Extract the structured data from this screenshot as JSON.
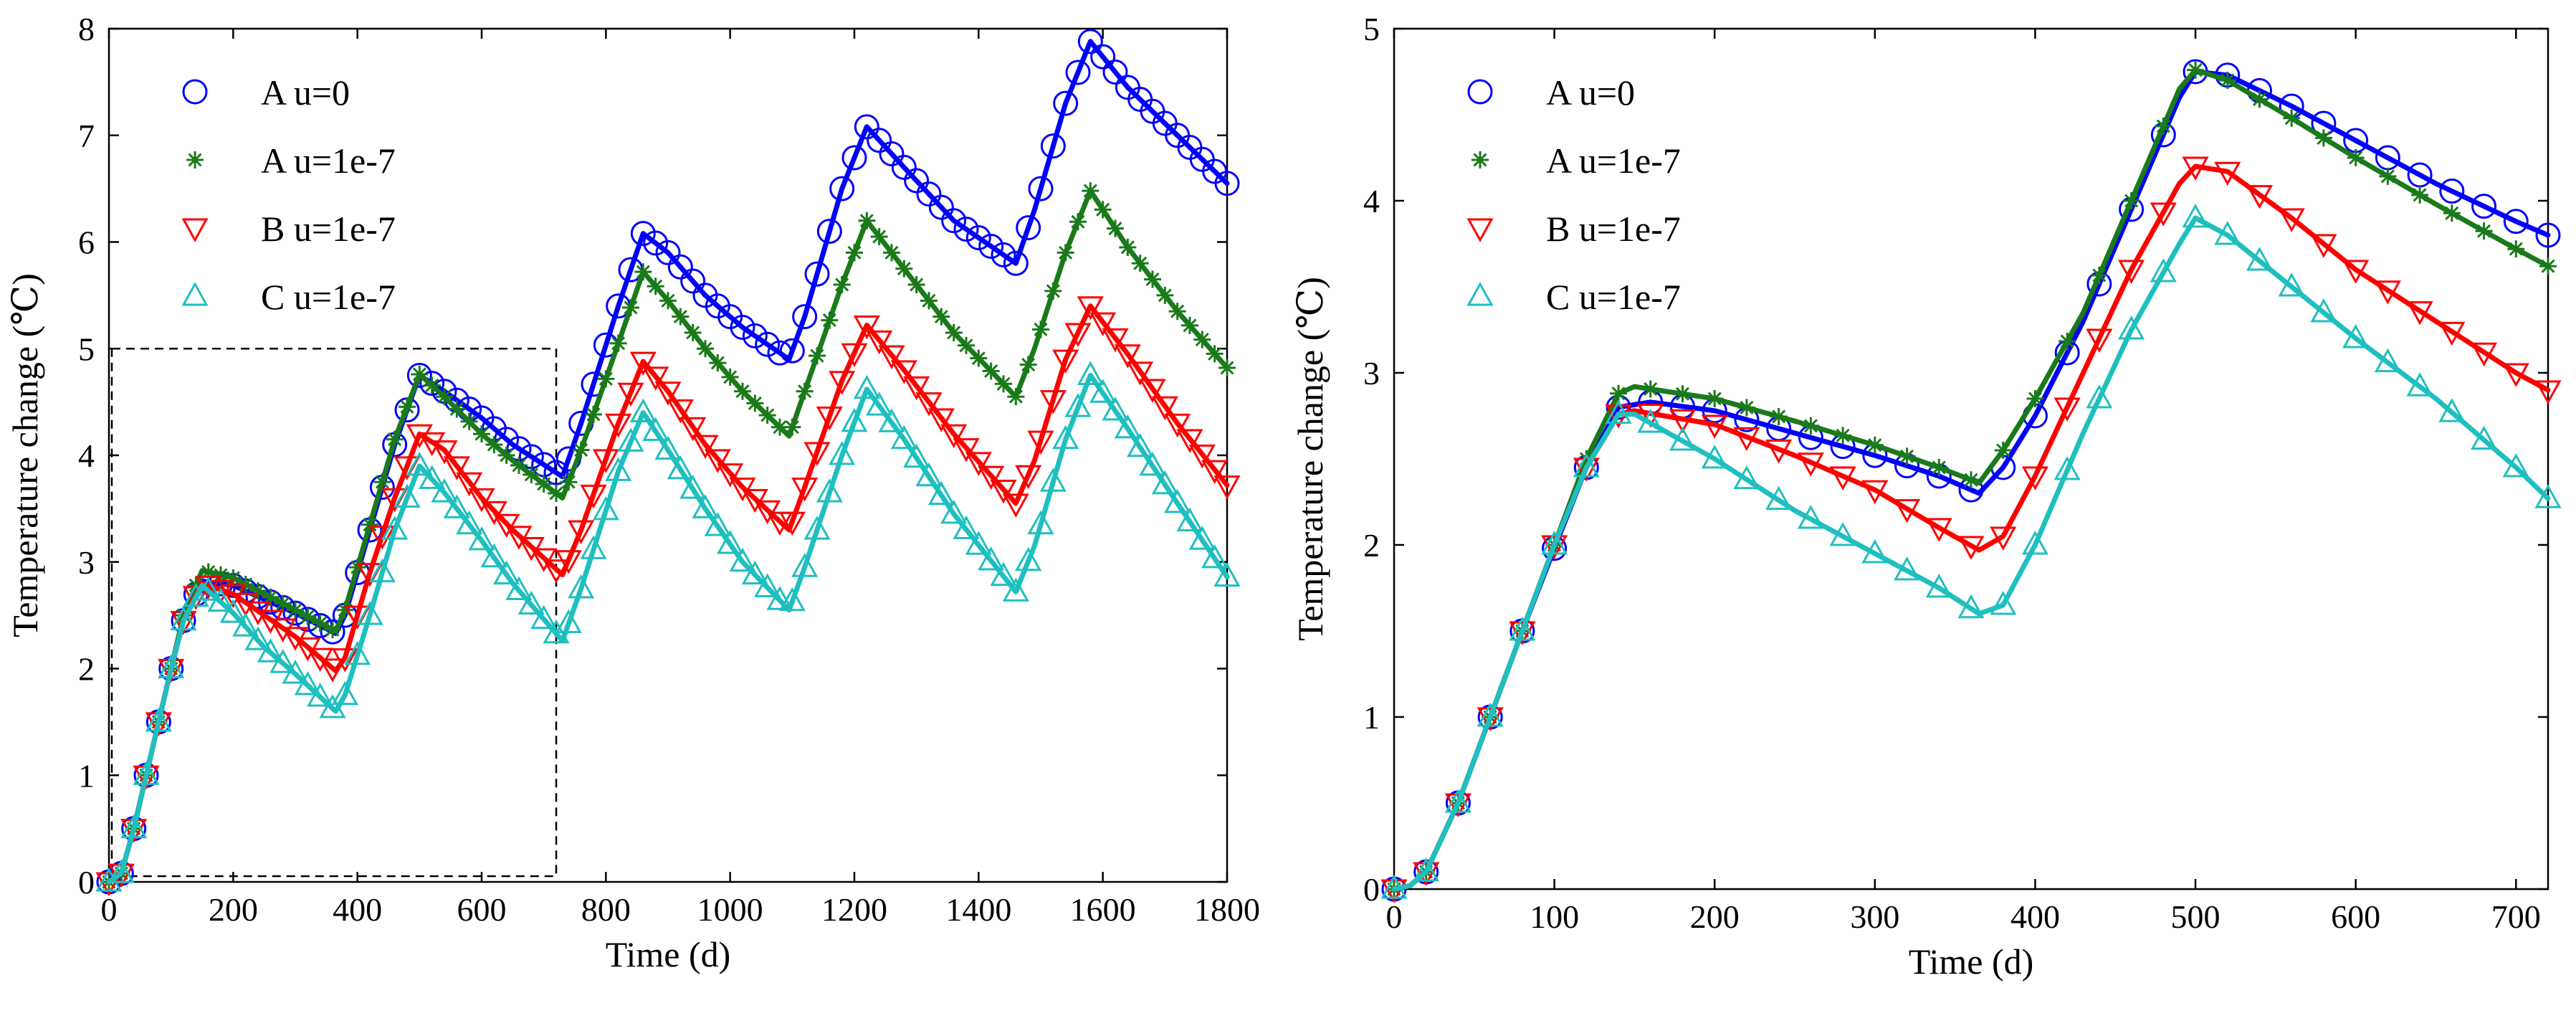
{
  "chart_data": [
    {
      "type": "line",
      "panel": "left",
      "xlabel": "Time (d)",
      "ylabel": "Temperature change (℃)",
      "xlim": [
        0,
        1800
      ],
      "ylim": [
        0,
        8
      ],
      "xticks": [
        "0",
        "200",
        "400",
        "600",
        "800",
        "1000",
        "1200",
        "1400",
        "1600",
        "1800"
      ],
      "yticks": [
        "0",
        "1",
        "2",
        "3",
        "4",
        "5",
        "6",
        "7",
        "8"
      ],
      "legend": "top-left",
      "zoom_box": {
        "x": [
          0,
          720
        ],
        "y": [
          0,
          5
        ]
      },
      "series": [
        {
          "name": "A u=0",
          "color": "#0000ff",
          "marker": "circle",
          "points": [
            [
              0,
              0
            ],
            [
              20,
              0.08
            ],
            [
              40,
              0.5
            ],
            [
              60,
              1.0
            ],
            [
              80,
              1.5
            ],
            [
              100,
              2.0
            ],
            [
              120,
              2.45
            ],
            [
              150,
              2.82
            ],
            [
              200,
              2.78
            ],
            [
              250,
              2.65
            ],
            [
              300,
              2.52
            ],
            [
              365,
              2.33
            ],
            [
              380,
              2.5
            ],
            [
              420,
              3.3
            ],
            [
              460,
              4.1
            ],
            [
              500,
              4.75
            ],
            [
              540,
              4.6
            ],
            [
              600,
              4.35
            ],
            [
              650,
              4.1
            ],
            [
              730,
              3.8
            ],
            [
              760,
              4.3
            ],
            [
              820,
              5.4
            ],
            [
              860,
              6.08
            ],
            [
              900,
              5.9
            ],
            [
              960,
              5.5
            ],
            [
              1020,
              5.2
            ],
            [
              1095,
              4.9
            ],
            [
              1120,
              5.3
            ],
            [
              1180,
              6.5
            ],
            [
              1220,
              7.08
            ],
            [
              1280,
              6.7
            ],
            [
              1360,
              6.2
            ],
            [
              1460,
              5.8
            ],
            [
              1490,
              6.3
            ],
            [
              1540,
              7.3
            ],
            [
              1580,
              7.88
            ],
            [
              1640,
              7.45
            ],
            [
              1720,
              7.0
            ],
            [
              1800,
              6.55
            ]
          ]
        },
        {
          "name": "A u=1e-7",
          "color": "#1a7a1a",
          "marker": "asterisk",
          "points": [
            [
              0,
              0
            ],
            [
              20,
              0.08
            ],
            [
              40,
              0.5
            ],
            [
              60,
              1.0
            ],
            [
              80,
              1.5
            ],
            [
              100,
              2.0
            ],
            [
              120,
              2.5
            ],
            [
              150,
              2.92
            ],
            [
              200,
              2.85
            ],
            [
              250,
              2.7
            ],
            [
              300,
              2.55
            ],
            [
              365,
              2.35
            ],
            [
              380,
              2.55
            ],
            [
              420,
              3.35
            ],
            [
              460,
              4.15
            ],
            [
              500,
              4.76
            ],
            [
              540,
              4.55
            ],
            [
              600,
              4.2
            ],
            [
              650,
              3.95
            ],
            [
              730,
              3.6
            ],
            [
              760,
              4.05
            ],
            [
              820,
              5.05
            ],
            [
              860,
              5.72
            ],
            [
              900,
              5.45
            ],
            [
              960,
              5.0
            ],
            [
              1020,
              4.6
            ],
            [
              1095,
              4.18
            ],
            [
              1120,
              4.6
            ],
            [
              1180,
              5.6
            ],
            [
              1220,
              6.2
            ],
            [
              1280,
              5.75
            ],
            [
              1360,
              5.15
            ],
            [
              1460,
              4.55
            ],
            [
              1490,
              5.0
            ],
            [
              1540,
              5.9
            ],
            [
              1580,
              6.48
            ],
            [
              1640,
              5.95
            ],
            [
              1720,
              5.35
            ],
            [
              1800,
              4.82
            ]
          ]
        },
        {
          "name": "B u=1e-7",
          "color": "#ff0000",
          "marker": "triangle-down",
          "points": [
            [
              0,
              0
            ],
            [
              20,
              0.08
            ],
            [
              40,
              0.5
            ],
            [
              60,
              1.0
            ],
            [
              80,
              1.5
            ],
            [
              100,
              2.0
            ],
            [
              120,
              2.45
            ],
            [
              150,
              2.8
            ],
            [
              200,
              2.7
            ],
            [
              250,
              2.5
            ],
            [
              300,
              2.3
            ],
            [
              365,
              1.98
            ],
            [
              380,
              2.1
            ],
            [
              420,
              2.9
            ],
            [
              460,
              3.6
            ],
            [
              500,
              4.2
            ],
            [
              540,
              4.05
            ],
            [
              600,
              3.6
            ],
            [
              650,
              3.3
            ],
            [
              730,
              2.88
            ],
            [
              760,
              3.3
            ],
            [
              820,
              4.3
            ],
            [
              860,
              4.88
            ],
            [
              900,
              4.6
            ],
            [
              960,
              4.1
            ],
            [
              1020,
              3.7
            ],
            [
              1095,
              3.3
            ],
            [
              1120,
              3.7
            ],
            [
              1180,
              4.7
            ],
            [
              1220,
              5.22
            ],
            [
              1280,
              4.8
            ],
            [
              1360,
              4.2
            ],
            [
              1460,
              3.55
            ],
            [
              1490,
              3.95
            ],
            [
              1540,
              4.9
            ],
            [
              1580,
              5.4
            ],
            [
              1640,
              4.95
            ],
            [
              1720,
              4.3
            ],
            [
              1800,
              3.72
            ]
          ]
        },
        {
          "name": "C u=1e-7",
          "color": "#1fbfbf",
          "marker": "triangle-up",
          "points": [
            [
              0,
              0
            ],
            [
              20,
              0.08
            ],
            [
              40,
              0.5
            ],
            [
              60,
              1.0
            ],
            [
              80,
              1.5
            ],
            [
              100,
              2.0
            ],
            [
              120,
              2.45
            ],
            [
              150,
              2.78
            ],
            [
              200,
              2.52
            ],
            [
              250,
              2.2
            ],
            [
              300,
              1.95
            ],
            [
              365,
              1.6
            ],
            [
              380,
              1.75
            ],
            [
              420,
              2.5
            ],
            [
              460,
              3.3
            ],
            [
              500,
              3.9
            ],
            [
              540,
              3.65
            ],
            [
              600,
              3.2
            ],
            [
              650,
              2.8
            ],
            [
              730,
              2.26
            ],
            [
              760,
              2.75
            ],
            [
              820,
              3.85
            ],
            [
              860,
              4.4
            ],
            [
              900,
              4.05
            ],
            [
              960,
              3.5
            ],
            [
              1020,
              3.0
            ],
            [
              1095,
              2.55
            ],
            [
              1120,
              2.95
            ],
            [
              1180,
              4.0
            ],
            [
              1220,
              4.62
            ],
            [
              1280,
              4.15
            ],
            [
              1360,
              3.45
            ],
            [
              1460,
              2.72
            ],
            [
              1490,
              3.15
            ],
            [
              1540,
              4.15
            ],
            [
              1580,
              4.75
            ],
            [
              1640,
              4.25
            ],
            [
              1720,
              3.55
            ],
            [
              1800,
              2.86
            ]
          ]
        }
      ]
    },
    {
      "type": "line",
      "panel": "right",
      "xlabel": "Time (d)",
      "ylabel": "Temperature change (℃)",
      "xlim": [
        0,
        720
      ],
      "ylim": [
        0,
        5
      ],
      "xticks": [
        "0",
        "100",
        "200",
        "300",
        "400",
        "500",
        "600",
        "700"
      ],
      "yticks": [
        "0",
        "1",
        "2",
        "3",
        "4",
        "5"
      ],
      "legend": "top-left",
      "series": [
        {
          "name": "A u=0",
          "color": "#0000ff",
          "marker": "circle",
          "points": [
            [
              0,
              0
            ],
            [
              10,
              0.02
            ],
            [
              20,
              0.1
            ],
            [
              40,
              0.5
            ],
            [
              60,
              1.0
            ],
            [
              80,
              1.5
            ],
            [
              100,
              1.98
            ],
            [
              120,
              2.45
            ],
            [
              140,
              2.8
            ],
            [
              160,
              2.83
            ],
            [
              200,
              2.78
            ],
            [
              250,
              2.65
            ],
            [
              300,
              2.52
            ],
            [
              340,
              2.4
            ],
            [
              365,
              2.3
            ],
            [
              380,
              2.45
            ],
            [
              400,
              2.75
            ],
            [
              430,
              3.3
            ],
            [
              460,
              3.95
            ],
            [
              490,
              4.6
            ],
            [
              500,
              4.75
            ],
            [
              520,
              4.73
            ],
            [
              560,
              4.55
            ],
            [
              600,
              4.35
            ],
            [
              650,
              4.1
            ],
            [
              700,
              3.88
            ],
            [
              720,
              3.8
            ]
          ]
        },
        {
          "name": "A u=1e-7",
          "color": "#1a7a1a",
          "marker": "asterisk",
          "points": [
            [
              0,
              0
            ],
            [
              10,
              0.02
            ],
            [
              20,
              0.1
            ],
            [
              40,
              0.5
            ],
            [
              60,
              1.0
            ],
            [
              80,
              1.5
            ],
            [
              100,
              2.0
            ],
            [
              120,
              2.5
            ],
            [
              140,
              2.88
            ],
            [
              150,
              2.92
            ],
            [
              200,
              2.85
            ],
            [
              250,
              2.72
            ],
            [
              300,
              2.58
            ],
            [
              340,
              2.45
            ],
            [
              365,
              2.36
            ],
            [
              380,
              2.55
            ],
            [
              400,
              2.85
            ],
            [
              430,
              3.35
            ],
            [
              460,
              4.0
            ],
            [
              490,
              4.65
            ],
            [
              500,
              4.76
            ],
            [
              520,
              4.7
            ],
            [
              560,
              4.48
            ],
            [
              600,
              4.25
            ],
            [
              650,
              3.98
            ],
            [
              700,
              3.72
            ],
            [
              720,
              3.62
            ]
          ]
        },
        {
          "name": "B u=1e-7",
          "color": "#ff0000",
          "marker": "triangle-down",
          "points": [
            [
              0,
              0
            ],
            [
              10,
              0.02
            ],
            [
              20,
              0.1
            ],
            [
              40,
              0.5
            ],
            [
              60,
              1.0
            ],
            [
              80,
              1.5
            ],
            [
              100,
              2.0
            ],
            [
              120,
              2.45
            ],
            [
              140,
              2.76
            ],
            [
              150,
              2.78
            ],
            [
              200,
              2.7
            ],
            [
              250,
              2.52
            ],
            [
              300,
              2.32
            ],
            [
              340,
              2.1
            ],
            [
              365,
              1.97
            ],
            [
              380,
              2.05
            ],
            [
              400,
              2.4
            ],
            [
              430,
              3.0
            ],
            [
              460,
              3.6
            ],
            [
              490,
              4.1
            ],
            [
              500,
              4.2
            ],
            [
              520,
              4.17
            ],
            [
              560,
              3.9
            ],
            [
              600,
              3.6
            ],
            [
              650,
              3.3
            ],
            [
              700,
              3.0
            ],
            [
              720,
              2.9
            ]
          ]
        },
        {
          "name": "C u=1e-7",
          "color": "#1fbfbf",
          "marker": "triangle-up",
          "points": [
            [
              0,
              0
            ],
            [
              10,
              0.02
            ],
            [
              20,
              0.1
            ],
            [
              40,
              0.5
            ],
            [
              60,
              1.0
            ],
            [
              80,
              1.5
            ],
            [
              100,
              2.0
            ],
            [
              120,
              2.45
            ],
            [
              140,
              2.76
            ],
            [
              150,
              2.76
            ],
            [
              200,
              2.5
            ],
            [
              250,
              2.2
            ],
            [
              300,
              1.95
            ],
            [
              340,
              1.75
            ],
            [
              365,
              1.6
            ],
            [
              380,
              1.65
            ],
            [
              400,
              2.0
            ],
            [
              430,
              2.65
            ],
            [
              460,
              3.25
            ],
            [
              490,
              3.75
            ],
            [
              500,
              3.9
            ],
            [
              520,
              3.8
            ],
            [
              560,
              3.5
            ],
            [
              600,
              3.2
            ],
            [
              650,
              2.85
            ],
            [
              700,
              2.45
            ],
            [
              720,
              2.27
            ]
          ]
        }
      ]
    }
  ]
}
